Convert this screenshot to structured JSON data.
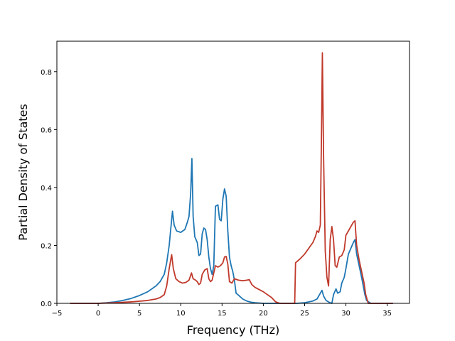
{
  "chart_data": {
    "type": "line",
    "title": "",
    "xlabel": "Frequency (THz)",
    "ylabel": "Partial Density of States",
    "xlim": [
      -5.0,
      37.7
    ],
    "ylim": [
      0.0,
      0.905
    ],
    "xticks": [
      -5,
      0,
      5,
      10,
      15,
      20,
      25,
      30,
      35
    ],
    "yticks": [
      0.0,
      0.2,
      0.4,
      0.6,
      0.8
    ],
    "xtick_labels": [
      "−5",
      "0",
      "5",
      "10",
      "15",
      "20",
      "25",
      "30",
      "35"
    ],
    "ytick_labels": [
      "0.0",
      "0.2",
      "0.4",
      "0.6",
      "0.8"
    ],
    "grid": false,
    "legend": "none",
    "series": [
      {
        "color": "#1f77b4",
        "points": [
          [
            -3.4,
            0.0
          ],
          [
            0,
            0.0
          ],
          [
            1,
            0.002
          ],
          [
            2,
            0.005
          ],
          [
            3,
            0.01
          ],
          [
            4,
            0.017
          ],
          [
            5,
            0.027
          ],
          [
            6,
            0.04
          ],
          [
            7,
            0.06
          ],
          [
            7.5,
            0.075
          ],
          [
            8,
            0.1
          ],
          [
            8.3,
            0.14
          ],
          [
            8.6,
            0.2
          ],
          [
            8.8,
            0.26
          ],
          [
            9.0,
            0.318
          ],
          [
            9.2,
            0.27
          ],
          [
            9.5,
            0.25
          ],
          [
            10.0,
            0.245
          ],
          [
            10.5,
            0.255
          ],
          [
            10.8,
            0.28
          ],
          [
            11.0,
            0.3
          ],
          [
            11.2,
            0.38
          ],
          [
            11.35,
            0.5
          ],
          [
            11.5,
            0.3
          ],
          [
            11.7,
            0.23
          ],
          [
            12.0,
            0.21
          ],
          [
            12.2,
            0.165
          ],
          [
            12.4,
            0.17
          ],
          [
            12.6,
            0.24
          ],
          [
            12.8,
            0.26
          ],
          [
            13.0,
            0.255
          ],
          [
            13.2,
            0.22
          ],
          [
            13.4,
            0.16
          ],
          [
            13.6,
            0.12
          ],
          [
            13.8,
            0.1
          ],
          [
            14.0,
            0.13
          ],
          [
            14.2,
            0.335
          ],
          [
            14.5,
            0.34
          ],
          [
            14.7,
            0.29
          ],
          [
            14.9,
            0.285
          ],
          [
            15.1,
            0.36
          ],
          [
            15.3,
            0.395
          ],
          [
            15.5,
            0.37
          ],
          [
            15.7,
            0.25
          ],
          [
            15.9,
            0.16
          ],
          [
            16.1,
            0.13
          ],
          [
            16.3,
            0.11
          ],
          [
            16.5,
            0.08
          ],
          [
            16.7,
            0.035
          ],
          [
            17.0,
            0.028
          ],
          [
            17.5,
            0.015
          ],
          [
            18.0,
            0.008
          ],
          [
            18.5,
            0.004
          ],
          [
            19.0,
            0.002
          ],
          [
            20.0,
            0.0
          ],
          [
            22.0,
            0.0
          ],
          [
            24.0,
            0.0
          ],
          [
            25.0,
            0.002
          ],
          [
            26.0,
            0.008
          ],
          [
            26.5,
            0.015
          ],
          [
            26.8,
            0.03
          ],
          [
            27.0,
            0.04
          ],
          [
            27.1,
            0.045
          ],
          [
            27.3,
            0.025
          ],
          [
            27.6,
            0.01
          ],
          [
            28.0,
            0.003
          ],
          [
            28.3,
            0.0
          ],
          [
            28.5,
            0.03
          ],
          [
            28.8,
            0.05
          ],
          [
            29.0,
            0.035
          ],
          [
            29.3,
            0.04
          ],
          [
            29.5,
            0.07
          ],
          [
            29.8,
            0.09
          ],
          [
            30.0,
            0.12
          ],
          [
            30.3,
            0.17
          ],
          [
            30.6,
            0.19
          ],
          [
            30.9,
            0.21
          ],
          [
            31.1,
            0.22
          ],
          [
            31.3,
            0.17
          ],
          [
            31.6,
            0.13
          ],
          [
            31.9,
            0.09
          ],
          [
            32.1,
            0.06
          ],
          [
            32.3,
            0.03
          ],
          [
            32.5,
            0.01
          ],
          [
            33.0,
            0.0
          ],
          [
            35.7,
            0.0
          ]
        ]
      },
      {
        "color": "#c0392b",
        "points": [
          [
            -3.4,
            0.0
          ],
          [
            0,
            0.0
          ],
          [
            2,
            0.002
          ],
          [
            4,
            0.005
          ],
          [
            6,
            0.01
          ],
          [
            7,
            0.015
          ],
          [
            7.5,
            0.02
          ],
          [
            8.0,
            0.03
          ],
          [
            8.3,
            0.06
          ],
          [
            8.6,
            0.12
          ],
          [
            8.9,
            0.168
          ],
          [
            9.1,
            0.12
          ],
          [
            9.4,
            0.085
          ],
          [
            9.8,
            0.075
          ],
          [
            10.2,
            0.07
          ],
          [
            10.6,
            0.072
          ],
          [
            11.0,
            0.08
          ],
          [
            11.3,
            0.105
          ],
          [
            11.5,
            0.085
          ],
          [
            11.8,
            0.08
          ],
          [
            12.0,
            0.075
          ],
          [
            12.2,
            0.065
          ],
          [
            12.4,
            0.07
          ],
          [
            12.6,
            0.1
          ],
          [
            12.9,
            0.115
          ],
          [
            13.2,
            0.12
          ],
          [
            13.4,
            0.085
          ],
          [
            13.6,
            0.075
          ],
          [
            13.8,
            0.08
          ],
          [
            14.0,
            0.105
          ],
          [
            14.2,
            0.13
          ],
          [
            14.5,
            0.125
          ],
          [
            14.8,
            0.13
          ],
          [
            15.1,
            0.14
          ],
          [
            15.3,
            0.16
          ],
          [
            15.5,
            0.162
          ],
          [
            15.7,
            0.135
          ],
          [
            15.9,
            0.075
          ],
          [
            16.2,
            0.07
          ],
          [
            16.5,
            0.085
          ],
          [
            17.0,
            0.08
          ],
          [
            17.5,
            0.078
          ],
          [
            18.0,
            0.08
          ],
          [
            18.3,
            0.082
          ],
          [
            18.6,
            0.065
          ],
          [
            19.0,
            0.055
          ],
          [
            20.0,
            0.04
          ],
          [
            21.0,
            0.02
          ],
          [
            21.5,
            0.005
          ],
          [
            22.0,
            0.0
          ],
          [
            23.8,
            0.0
          ],
          [
            23.9,
            0.14
          ],
          [
            24.5,
            0.155
          ],
          [
            25.0,
            0.17
          ],
          [
            25.5,
            0.19
          ],
          [
            26.0,
            0.21
          ],
          [
            26.3,
            0.23
          ],
          [
            26.5,
            0.25
          ],
          [
            26.7,
            0.245
          ],
          [
            26.9,
            0.27
          ],
          [
            27.05,
            0.6
          ],
          [
            27.15,
            0.865
          ],
          [
            27.3,
            0.5
          ],
          [
            27.5,
            0.18
          ],
          [
            27.7,
            0.09
          ],
          [
            27.9,
            0.06
          ],
          [
            28.1,
            0.22
          ],
          [
            28.3,
            0.265
          ],
          [
            28.5,
            0.22
          ],
          [
            28.7,
            0.13
          ],
          [
            28.9,
            0.125
          ],
          [
            29.2,
            0.16
          ],
          [
            29.5,
            0.165
          ],
          [
            29.8,
            0.185
          ],
          [
            30.0,
            0.235
          ],
          [
            30.3,
            0.25
          ],
          [
            30.6,
            0.265
          ],
          [
            30.9,
            0.28
          ],
          [
            31.1,
            0.285
          ],
          [
            31.3,
            0.2
          ],
          [
            31.6,
            0.15
          ],
          [
            31.9,
            0.11
          ],
          [
            32.2,
            0.07
          ],
          [
            32.4,
            0.03
          ],
          [
            32.7,
            0.0
          ],
          [
            35.7,
            0.0
          ]
        ]
      }
    ]
  }
}
